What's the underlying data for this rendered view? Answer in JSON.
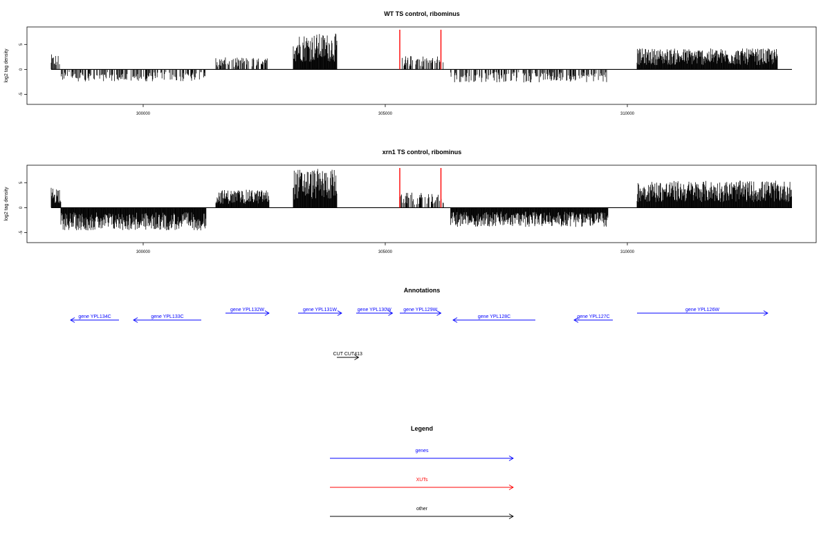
{
  "chart_data": [
    {
      "type": "bar",
      "title": "WT TS control, ribominus",
      "ylabel": "log2 tag density",
      "xlim": [
        297600,
        313900
      ],
      "ylim": [
        -7,
        8.5
      ],
      "xticks": [
        300000,
        305000,
        310000
      ],
      "yticks": [
        -5,
        0,
        5
      ],
      "markers_x": [
        305300,
        306150
      ],
      "marker_color": "#ff0000",
      "segments": [
        {
          "x0": 298100,
          "x1": 298300,
          "sign": 1,
          "amp": 2.5
        },
        {
          "x0": 298300,
          "x1": 301300,
          "sign": -1,
          "amp": 2.0
        },
        {
          "x0": 301500,
          "x1": 302600,
          "sign": 1,
          "amp": 2.0
        },
        {
          "x0": 303100,
          "x1": 304000,
          "sign": 1,
          "amp": 6.0
        },
        {
          "x0": 305350,
          "x1": 306200,
          "sign": 1,
          "amp": 2.3
        },
        {
          "x0": 306350,
          "x1": 309600,
          "sign": -1,
          "amp": 2.2
        },
        {
          "x0": 310200,
          "x1": 313100,
          "sign": 1,
          "amp": 3.5
        }
      ]
    },
    {
      "type": "bar",
      "title": "xrn1 TS control, ribominus",
      "ylabel": "log2 tag density",
      "xlim": [
        297600,
        313900
      ],
      "ylim": [
        -7,
        8.5
      ],
      "xticks": [
        300000,
        305000,
        310000
      ],
      "yticks": [
        -5,
        0,
        5
      ],
      "markers_x": [
        305300,
        306150
      ],
      "marker_color": "#ff0000",
      "segments": [
        {
          "x0": 298100,
          "x1": 298300,
          "sign": 1,
          "amp": 3.5
        },
        {
          "x0": 298300,
          "x1": 301300,
          "sign": -1,
          "amp": 3.8
        },
        {
          "x0": 301500,
          "x1": 302600,
          "sign": 1,
          "amp": 3.0
        },
        {
          "x0": 303100,
          "x1": 304000,
          "sign": 1,
          "amp": 6.5
        },
        {
          "x0": 305300,
          "x1": 306200,
          "sign": 1,
          "amp": 2.5
        },
        {
          "x0": 306350,
          "x1": 309600,
          "sign": -1,
          "amp": 3.2
        },
        {
          "x0": 310200,
          "x1": 313400,
          "sign": 1,
          "amp": 4.5
        }
      ]
    }
  ],
  "annotations": {
    "title": "Annotations",
    "genes": [
      {
        "label": "gene YPL134C",
        "x0": 298500,
        "x1": 299500,
        "strand": "-",
        "row": 1
      },
      {
        "label": "gene YPL133C",
        "x0": 299800,
        "x1": 301200,
        "strand": "-",
        "row": 1
      },
      {
        "label": "gene YPL132W",
        "x0": 301700,
        "x1": 302600,
        "strand": "+",
        "row": 0
      },
      {
        "label": "gene YPL131W",
        "x0": 303200,
        "x1": 304100,
        "strand": "+",
        "row": 0
      },
      {
        "label": "gene YPL130W",
        "x0": 304400,
        "x1": 305150,
        "strand": "+",
        "row": 0
      },
      {
        "label": "gene YPL129W",
        "x0": 305300,
        "x1": 306150,
        "strand": "+",
        "row": 0
      },
      {
        "label": "gene YPL128C",
        "x0": 306400,
        "x1": 308100,
        "strand": "-",
        "row": 1
      },
      {
        "label": "gene YPL127C",
        "x0": 308900,
        "x1": 309700,
        "strand": "-",
        "row": 1
      },
      {
        "label": "gene YPL126W",
        "x0": 310200,
        "x1": 312900,
        "strand": "+",
        "row": 0
      }
    ],
    "other": [
      {
        "label": "CUT CUT413",
        "x0": 304000,
        "x1": 304450,
        "strand": "+"
      }
    ]
  },
  "legend": {
    "title": "Legend",
    "items": [
      {
        "label": "genes",
        "color": "#0000ff"
      },
      {
        "label": "XUTs",
        "color": "#ff0000"
      },
      {
        "label": "other",
        "color": "#000000"
      }
    ]
  }
}
